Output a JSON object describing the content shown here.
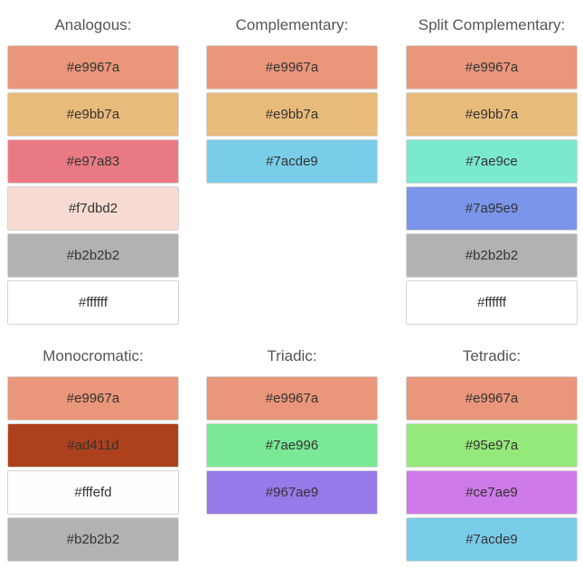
{
  "palettes": [
    {
      "id": "analogous",
      "title": "Analogous:",
      "colors": [
        "#e9967a",
        "#e9bb7a",
        "#e97a83",
        "#f7dbd2",
        "#b2b2b2",
        "#ffffff"
      ]
    },
    {
      "id": "complementary",
      "title": "Complementary:",
      "colors": [
        "#e9967a",
        "#e9bb7a",
        "#7acde9"
      ]
    },
    {
      "id": "split-complementary",
      "title": "Split Complementary:",
      "colors": [
        "#e9967a",
        "#e9bb7a",
        "#7ae9ce",
        "#7a95e9",
        "#b2b2b2",
        "#ffffff"
      ]
    },
    {
      "id": "monocromatic",
      "title": "Monocromatic:",
      "colors": [
        "#e9967a",
        "#ad411d",
        "#fffefd",
        "#b2b2b2"
      ]
    },
    {
      "id": "triadic",
      "title": "Triadic:",
      "colors": [
        "#e9967a",
        "#7ae996",
        "#967ae9"
      ]
    },
    {
      "id": "tetradic",
      "title": "Tetradic:",
      "colors": [
        "#e9967a",
        "#95e97a",
        "#ce7ae9",
        "#7acde9"
      ]
    }
  ]
}
